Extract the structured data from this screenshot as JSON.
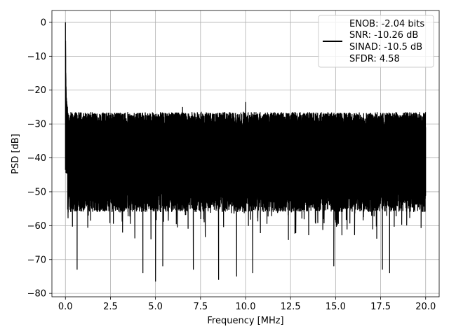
{
  "chart_data": {
    "type": "line",
    "title": "",
    "xlabel": "Frequency [MHz]",
    "ylabel": "PSD [dB]",
    "xlim": [
      -0.75,
      20.75
    ],
    "ylim": [
      -81,
      3.5
    ],
    "x_ticks": [
      0.0,
      2.5,
      5.0,
      7.5,
      10.0,
      12.5,
      15.0,
      17.5,
      20.0
    ],
    "x_tick_labels": [
      "0.0",
      "2.5",
      "5.0",
      "7.5",
      "10.0",
      "12.5",
      "15.0",
      "17.5",
      "20.0"
    ],
    "y_ticks": [
      0,
      -10,
      -20,
      -30,
      -40,
      -50,
      -60,
      -70,
      -80
    ],
    "y_tick_labels": [
      "0",
      "−10",
      "−20",
      "−30",
      "−40",
      "−50",
      "−60",
      "−70",
      "−80"
    ],
    "grid": true,
    "legend_placement": "top-right",
    "line_color": "#000000",
    "legend": {
      "lines": [
        "ENOB: -2.04 bits",
        "SNR: -10.26 dB",
        "SINAD: -10.5 dB",
        "SFDR: 4.58"
      ]
    },
    "series": [
      {
        "x_range": [
          0,
          20
        ],
        "peak": {
          "x": 0.0,
          "y": 0.0
        },
        "dc_rolloff": [
          [
            0.0,
            0.0
          ],
          [
            0.02,
            -14
          ],
          [
            0.05,
            -22
          ],
          [
            0.1,
            -25
          ]
        ],
        "upper_envelope_db": -29,
        "upper_spread_db": 2.5,
        "lower_envelope_db": -52,
        "lower_spread_db": 4,
        "noticeable_spikes": [
          {
            "x": 0.65,
            "y": -73
          },
          {
            "x": 4.3,
            "y": -74
          },
          {
            "x": 5.0,
            "y": -76.5
          },
          {
            "x": 5.4,
            "y": -72
          },
          {
            "x": 7.1,
            "y": -73
          },
          {
            "x": 8.5,
            "y": -76
          },
          {
            "x": 9.5,
            "y": -75
          },
          {
            "x": 10.4,
            "y": -74
          },
          {
            "x": 14.9,
            "y": -72
          },
          {
            "x": 17.6,
            "y": -73
          },
          {
            "x": 18.0,
            "y": -74
          },
          {
            "x": 10.0,
            "y": -23.5
          },
          {
            "x": 6.5,
            "y": -25
          }
        ]
      }
    ]
  }
}
